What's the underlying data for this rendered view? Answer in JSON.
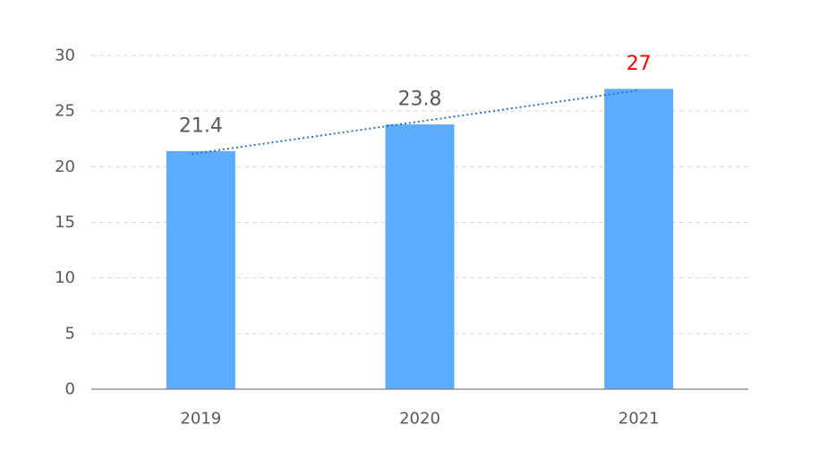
{
  "chart_data": {
    "type": "bar",
    "title": "",
    "xlabel": "",
    "ylabel": "",
    "categories": [
      "2019",
      "2020",
      "2021"
    ],
    "values": [
      21.4,
      23.8,
      27
    ],
    "data_labels": [
      "21.4",
      "23.8",
      "27"
    ],
    "ylim": [
      0,
      30
    ],
    "yticks": [
      0,
      5,
      10,
      15,
      20,
      25,
      30
    ],
    "ytick_labels": [
      "0",
      "5",
      "10",
      "15",
      "20",
      "25",
      "30"
    ],
    "grid": true,
    "legend": "none",
    "trendline": "linear",
    "highlight_index": 2
  },
  "colors": {
    "bar": "#5eacff",
    "label": "#595959",
    "highlight_label": "#ff0000",
    "trendline": "#2e75b6",
    "grid": "#d9d9d9",
    "axis": "#808080"
  }
}
